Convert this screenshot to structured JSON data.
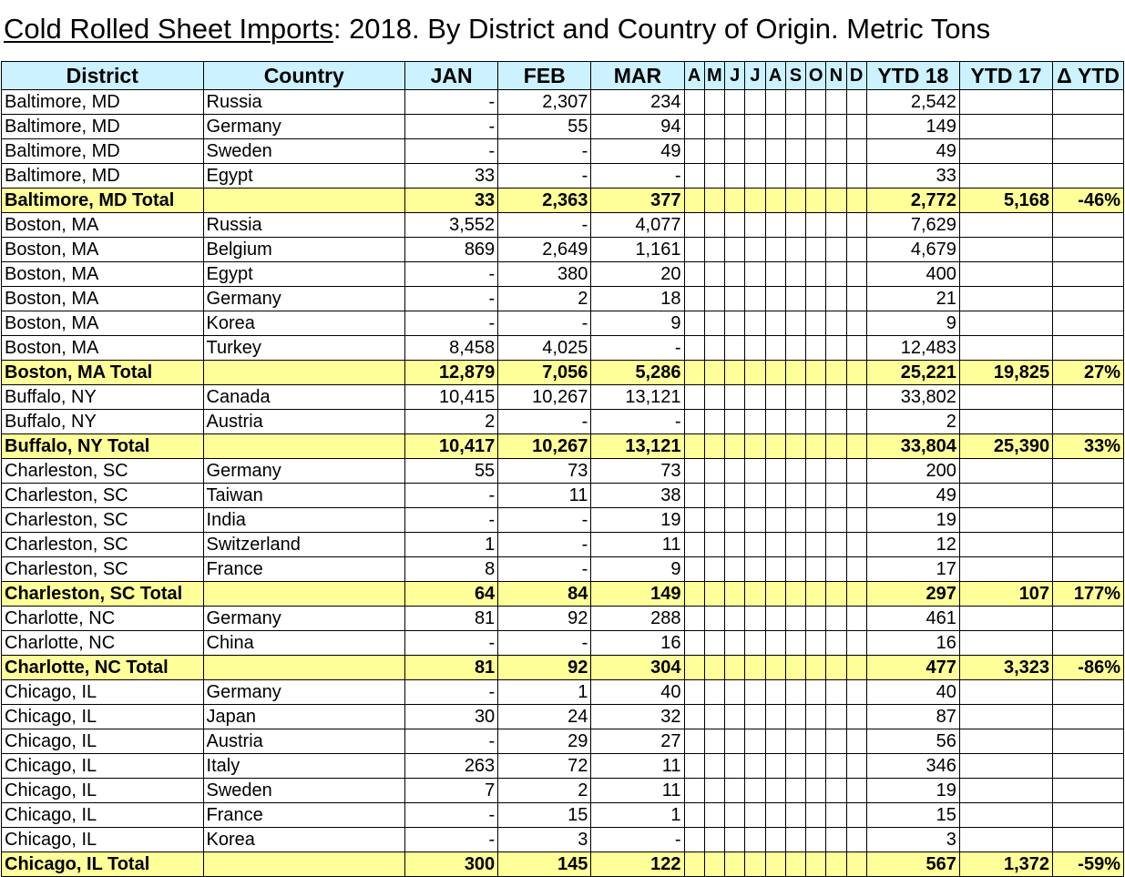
{
  "title": {
    "underlined": "Cold Rolled Sheet Imports",
    "rest": ": 2018. By District and Country of Origin. Metric Tons"
  },
  "colors": {
    "header_bg": "#ccf2ff",
    "total_bg": "#ffff99"
  },
  "headers": {
    "district": "District",
    "country": "Country",
    "jan": "JAN",
    "feb": "FEB",
    "mar": "MAR",
    "months": [
      "A",
      "M",
      "J",
      "J",
      "A",
      "S",
      "O",
      "N",
      "D"
    ],
    "ytd18": "YTD 18",
    "ytd17": "YTD 17",
    "delta": "Δ YTD"
  },
  "rows": [
    {
      "type": "data",
      "district": "Baltimore, MD",
      "country": "Russia",
      "jan": "-",
      "feb": "2,307",
      "mar": "234",
      "ytd18": "2,542",
      "ytd17": "",
      "delta": ""
    },
    {
      "type": "data",
      "district": "Baltimore, MD",
      "country": "Germany",
      "jan": "-",
      "feb": "55",
      "mar": "94",
      "ytd18": "149",
      "ytd17": "",
      "delta": ""
    },
    {
      "type": "data",
      "district": "Baltimore, MD",
      "country": "Sweden",
      "jan": "-",
      "feb": "-",
      "mar": "49",
      "ytd18": "49",
      "ytd17": "",
      "delta": ""
    },
    {
      "type": "data",
      "district": "Baltimore, MD",
      "country": "Egypt",
      "jan": "33",
      "feb": "-",
      "mar": "-",
      "ytd18": "33",
      "ytd17": "",
      "delta": ""
    },
    {
      "type": "total",
      "district": "Baltimore, MD Total",
      "country": "",
      "jan": "33",
      "feb": "2,363",
      "mar": "377",
      "ytd18": "2,772",
      "ytd17": "5,168",
      "delta": "-46%"
    },
    {
      "type": "data",
      "district": "Boston, MA",
      "country": "Russia",
      "jan": "3,552",
      "feb": "-",
      "mar": "4,077",
      "ytd18": "7,629",
      "ytd17": "",
      "delta": ""
    },
    {
      "type": "data",
      "district": "Boston, MA",
      "country": "Belgium",
      "jan": "869",
      "feb": "2,649",
      "mar": "1,161",
      "ytd18": "4,679",
      "ytd17": "",
      "delta": ""
    },
    {
      "type": "data",
      "district": "Boston, MA",
      "country": "Egypt",
      "jan": "-",
      "feb": "380",
      "mar": "20",
      "ytd18": "400",
      "ytd17": "",
      "delta": ""
    },
    {
      "type": "data",
      "district": "Boston, MA",
      "country": "Germany",
      "jan": "-",
      "feb": "2",
      "mar": "18",
      "ytd18": "21",
      "ytd17": "",
      "delta": ""
    },
    {
      "type": "data",
      "district": "Boston, MA",
      "country": "Korea",
      "jan": "-",
      "feb": "-",
      "mar": "9",
      "ytd18": "9",
      "ytd17": "",
      "delta": ""
    },
    {
      "type": "data",
      "district": "Boston, MA",
      "country": "Turkey",
      "jan": "8,458",
      "feb": "4,025",
      "mar": "-",
      "ytd18": "12,483",
      "ytd17": "",
      "delta": ""
    },
    {
      "type": "total",
      "district": "Boston, MA Total",
      "country": "",
      "jan": "12,879",
      "feb": "7,056",
      "mar": "5,286",
      "ytd18": "25,221",
      "ytd17": "19,825",
      "delta": "27%"
    },
    {
      "type": "data",
      "district": "Buffalo, NY",
      "country": "Canada",
      "jan": "10,415",
      "feb": "10,267",
      "mar": "13,121",
      "ytd18": "33,802",
      "ytd17": "",
      "delta": ""
    },
    {
      "type": "data",
      "district": "Buffalo, NY",
      "country": "Austria",
      "jan": "2",
      "feb": "-",
      "mar": "-",
      "ytd18": "2",
      "ytd17": "",
      "delta": ""
    },
    {
      "type": "total",
      "district": "Buffalo, NY Total",
      "country": "",
      "jan": "10,417",
      "feb": "10,267",
      "mar": "13,121",
      "ytd18": "33,804",
      "ytd17": "25,390",
      "delta": "33%"
    },
    {
      "type": "data",
      "district": "Charleston, SC",
      "country": "Germany",
      "jan": "55",
      "feb": "73",
      "mar": "73",
      "ytd18": "200",
      "ytd17": "",
      "delta": ""
    },
    {
      "type": "data",
      "district": "Charleston, SC",
      "country": "Taiwan",
      "jan": "-",
      "feb": "11",
      "mar": "38",
      "ytd18": "49",
      "ytd17": "",
      "delta": ""
    },
    {
      "type": "data",
      "district": "Charleston, SC",
      "country": "India",
      "jan": "-",
      "feb": "-",
      "mar": "19",
      "ytd18": "19",
      "ytd17": "",
      "delta": ""
    },
    {
      "type": "data",
      "district": "Charleston, SC",
      "country": "Switzerland",
      "jan": "1",
      "feb": "-",
      "mar": "11",
      "ytd18": "12",
      "ytd17": "",
      "delta": ""
    },
    {
      "type": "data",
      "district": "Charleston, SC",
      "country": "France",
      "jan": "8",
      "feb": "-",
      "mar": "9",
      "ytd18": "17",
      "ytd17": "",
      "delta": ""
    },
    {
      "type": "total",
      "district": "Charleston, SC Total",
      "country": "",
      "jan": "64",
      "feb": "84",
      "mar": "149",
      "ytd18": "297",
      "ytd17": "107",
      "delta": "177%"
    },
    {
      "type": "data",
      "district": "Charlotte, NC",
      "country": "Germany",
      "jan": "81",
      "feb": "92",
      "mar": "288",
      "ytd18": "461",
      "ytd17": "",
      "delta": ""
    },
    {
      "type": "data",
      "district": "Charlotte, NC",
      "country": "China",
      "jan": "-",
      "feb": "-",
      "mar": "16",
      "ytd18": "16",
      "ytd17": "",
      "delta": ""
    },
    {
      "type": "total",
      "district": "Charlotte, NC Total",
      "country": "",
      "jan": "81",
      "feb": "92",
      "mar": "304",
      "ytd18": "477",
      "ytd17": "3,323",
      "delta": "-86%"
    },
    {
      "type": "data",
      "district": "Chicago, IL",
      "country": "Germany",
      "jan": "-",
      "feb": "1",
      "mar": "40",
      "ytd18": "40",
      "ytd17": "",
      "delta": ""
    },
    {
      "type": "data",
      "district": "Chicago, IL",
      "country": "Japan",
      "jan": "30",
      "feb": "24",
      "mar": "32",
      "ytd18": "87",
      "ytd17": "",
      "delta": ""
    },
    {
      "type": "data",
      "district": "Chicago, IL",
      "country": "Austria",
      "jan": "-",
      "feb": "29",
      "mar": "27",
      "ytd18": "56",
      "ytd17": "",
      "delta": ""
    },
    {
      "type": "data",
      "district": "Chicago, IL",
      "country": "Italy",
      "jan": "263",
      "feb": "72",
      "mar": "11",
      "ytd18": "346",
      "ytd17": "",
      "delta": ""
    },
    {
      "type": "data",
      "district": "Chicago, IL",
      "country": "Sweden",
      "jan": "7",
      "feb": "2",
      "mar": "11",
      "ytd18": "19",
      "ytd17": "",
      "delta": ""
    },
    {
      "type": "data",
      "district": "Chicago, IL",
      "country": "France",
      "jan": "-",
      "feb": "15",
      "mar": "1",
      "ytd18": "15",
      "ytd17": "",
      "delta": ""
    },
    {
      "type": "data",
      "district": "Chicago, IL",
      "country": "Korea",
      "jan": "-",
      "feb": "3",
      "mar": "-",
      "ytd18": "3",
      "ytd17": "",
      "delta": ""
    },
    {
      "type": "total",
      "district": "Chicago, IL Total",
      "country": "",
      "jan": "300",
      "feb": "145",
      "mar": "122",
      "ytd18": "567",
      "ytd17": "1,372",
      "delta": "-59%"
    }
  ]
}
